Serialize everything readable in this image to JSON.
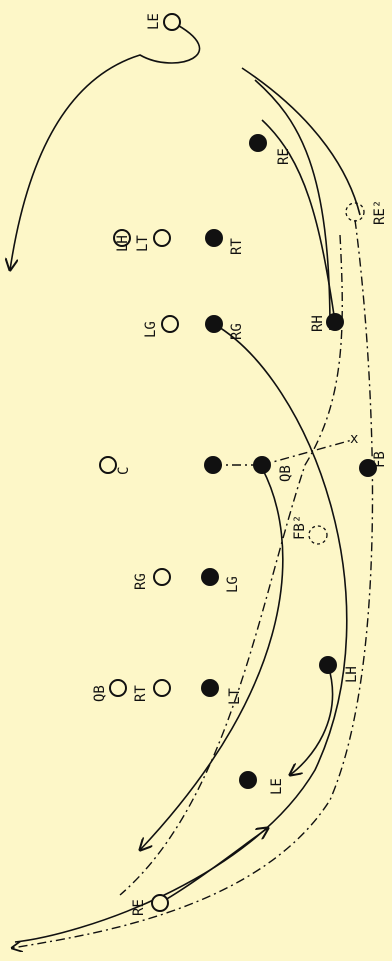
{
  "defense": [
    {
      "id": "le",
      "label": "LE"
    },
    {
      "id": "lh",
      "label": "LH"
    },
    {
      "id": "lt",
      "label": "LT"
    },
    {
      "id": "lg",
      "label": "LG"
    },
    {
      "id": "c",
      "label": "C"
    },
    {
      "id": "rg",
      "label": "RG"
    },
    {
      "id": "qb",
      "label": "QB"
    },
    {
      "id": "rt",
      "label": "RT"
    },
    {
      "id": "re",
      "label": "RE"
    }
  ],
  "offense": [
    {
      "id": "re",
      "label": "RE"
    },
    {
      "id": "rt",
      "label": "RT"
    },
    {
      "id": "rh",
      "label": "RH"
    },
    {
      "id": "rg",
      "label": "RG"
    },
    {
      "id": "c",
      "label": ""
    },
    {
      "id": "qb",
      "label": "QB"
    },
    {
      "id": "fb",
      "label": "FB"
    },
    {
      "id": "lg",
      "label": "LG"
    },
    {
      "id": "lh",
      "label": "LH"
    },
    {
      "id": "lt",
      "label": "LT"
    },
    {
      "id": "le",
      "label": "LE"
    }
  ],
  "ghosts": [
    {
      "id": "re2",
      "label": "RE²"
    },
    {
      "id": "fb2",
      "label": "FB²"
    }
  ],
  "exchange_mark": "x"
}
